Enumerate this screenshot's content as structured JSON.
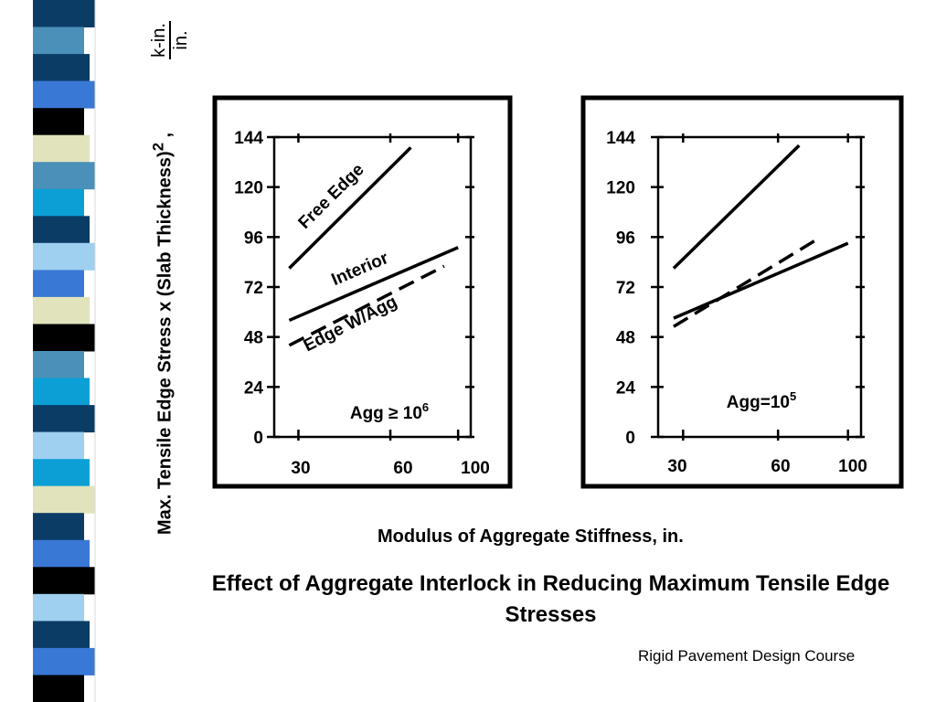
{
  "slide": {
    "title": "Effect of Aggregate Interlock in Reducing Maximum Tensile Edge Stresses",
    "footer": "Rigid Pavement Design Course",
    "stripe_colors": [
      "#0b3c66",
      "#4a90b8",
      "#0b3c66",
      "#3a78d6",
      "#000000",
      "#e0e3bc",
      "#4a90b8",
      "#0b9fd6",
      "#0b3c66",
      "#9fd0f0",
      "#3a78d6",
      "#e0e3bc",
      "#000000",
      "#4a90b8",
      "#0b9fd6",
      "#0b3c66",
      "#9fd0f0",
      "#0b9fd6",
      "#e0e3bc",
      "#0b3c66",
      "#3a78d6",
      "#000000",
      "#9fd0f0",
      "#0b3c66",
      "#3a78d6",
      "#000000"
    ]
  },
  "axis": {
    "ylabel": "Max. Tensile Edge Stress x (Slab Thickness)",
    "ylabel_sup": "2",
    "ylabel_suffix": " ,",
    "unit_numerator": "k-in.",
    "unit_denominator": "in.",
    "xlabel": "Modulus of Aggregate Stiffness, in."
  },
  "chart_data": [
    {
      "type": "line",
      "xscale": "log",
      "xticks": [
        "30",
        "60",
        "100"
      ],
      "yticks": [
        "0",
        "24",
        "48",
        "72",
        "96",
        "120",
        "144"
      ],
      "ylim": [
        0,
        144
      ],
      "xlim": [
        25,
        110
      ],
      "annotation": "Agg ≥ 10",
      "annotation_sup": "6",
      "series": [
        {
          "name": "Free Edge",
          "style": "solid",
          "x": [
            28,
            70
          ],
          "y": [
            81,
            139
          ]
        },
        {
          "name": "Interior",
          "style": "solid",
          "x": [
            28,
            100
          ],
          "y": [
            56,
            91
          ]
        },
        {
          "name": "Edge W/Agg",
          "style": "dashed",
          "x": [
            28,
            90
          ],
          "y": [
            44,
            82
          ]
        }
      ]
    },
    {
      "type": "line",
      "xscale": "log",
      "xticks": [
        "30",
        "60",
        "100"
      ],
      "yticks": [
        "0",
        "24",
        "48",
        "72",
        "96",
        "120",
        "144"
      ],
      "ylim": [
        0,
        144
      ],
      "xlim": [
        25,
        110
      ],
      "annotation": "Agg=10",
      "annotation_sup": "5",
      "series": [
        {
          "style": "solid",
          "x": [
            28,
            70
          ],
          "y": [
            81,
            140
          ]
        },
        {
          "style": "solid",
          "x": [
            28,
            100
          ],
          "y": [
            57,
            93
          ]
        },
        {
          "style": "dashed",
          "x": [
            28,
            80
          ],
          "y": [
            53,
            95
          ]
        }
      ]
    }
  ]
}
